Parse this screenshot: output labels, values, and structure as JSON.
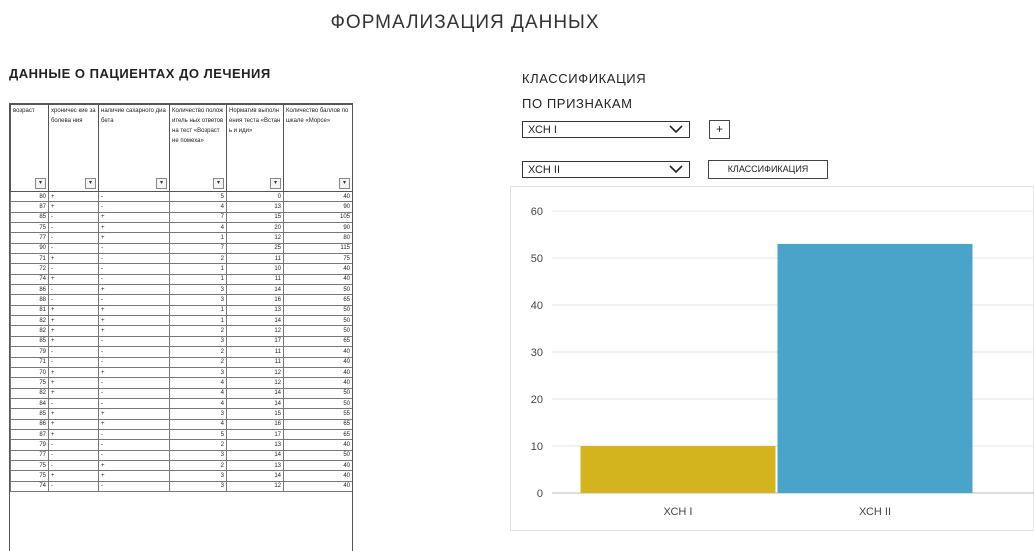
{
  "page": {
    "title": "ФОРМАЛИЗАЦИЯ ДАННЫХ"
  },
  "left": {
    "heading": "ДАННЫЕ О ПАЦИЕНТАХ ДО ЛЕЧЕНИЯ",
    "columns": [
      "возраст",
      "хроничес кие заболева ния",
      "наличие сахарного диабета",
      "Количество положитель ных ответов на тест «Возраст не помеха»",
      "Норматив выполнения теста «Встань и иди»",
      "Количество баллов по шкале «Морсе»"
    ],
    "rows": [
      [
        "80",
        "+",
        "-",
        "5",
        "0",
        "40"
      ],
      [
        "87",
        "+",
        "-",
        "4",
        "13",
        "90"
      ],
      [
        "85",
        "-",
        "+",
        "7",
        "15",
        "105"
      ],
      [
        "75",
        "-",
        "+",
        "4",
        "20",
        "90"
      ],
      [
        "77",
        "-",
        "+",
        "1",
        "12",
        "80"
      ],
      [
        "90",
        "-",
        "-",
        "7",
        "25",
        "115"
      ],
      [
        "71",
        "+",
        "-",
        "2",
        "11",
        "75"
      ],
      [
        "72",
        "-",
        "-",
        "1",
        "10",
        "40"
      ],
      [
        "74",
        "+",
        "-",
        "1",
        "11",
        "40"
      ],
      [
        "86",
        "-",
        "+",
        "3",
        "14",
        "50"
      ],
      [
        "88",
        "-",
        "-",
        "3",
        "16",
        "65"
      ],
      [
        "81",
        "+",
        "+",
        "1",
        "13",
        "50"
      ],
      [
        "82",
        "+",
        "+",
        "1",
        "14",
        "50"
      ],
      [
        "82",
        "+",
        "+",
        "2",
        "12",
        "50"
      ],
      [
        "85",
        "+",
        "-",
        "3",
        "17",
        "65"
      ],
      [
        "79",
        "-",
        "-",
        "2",
        "11",
        "40"
      ],
      [
        "71",
        "-",
        "-",
        "2",
        "11",
        "40"
      ],
      [
        "70",
        "+",
        "+",
        "3",
        "12",
        "40"
      ],
      [
        "75",
        "+",
        "-",
        "4",
        "12",
        "40"
      ],
      [
        "82",
        "+",
        "-",
        "4",
        "14",
        "50"
      ],
      [
        "84",
        "-",
        "-",
        "4",
        "14",
        "50"
      ],
      [
        "85",
        "+",
        "+",
        "3",
        "15",
        "55"
      ],
      [
        "86",
        "+",
        "+",
        "4",
        "16",
        "65"
      ],
      [
        "87",
        "+",
        "-",
        "5",
        "17",
        "65"
      ],
      [
        "79",
        "-",
        "-",
        "2",
        "13",
        "40"
      ],
      [
        "77",
        "-",
        "-",
        "3",
        "14",
        "50"
      ],
      [
        "75",
        "-",
        "+",
        "2",
        "13",
        "40"
      ],
      [
        "75",
        "+",
        "+",
        "3",
        "14",
        "40"
      ],
      [
        "74",
        "-",
        "-",
        "3",
        "12",
        "40"
      ]
    ]
  },
  "right": {
    "heading_line1": "КЛАССИФИКАЦИЯ",
    "heading_line2": "ПО ПРИЗНАКАМ",
    "select1": {
      "value": "ХСН I"
    },
    "select2": {
      "value": "ХСН II"
    },
    "add_label": "+",
    "classify_label": "КЛАССИФИКАЦИЯ"
  },
  "chart_data": {
    "type": "bar",
    "categories": [
      "ХСН I",
      "ХСН II"
    ],
    "values": [
      10,
      53
    ],
    "colors": [
      "#d4b41e",
      "#4aa3c8"
    ],
    "ylim": [
      0,
      60
    ],
    "yticks": [
      0,
      10,
      20,
      30,
      40,
      50,
      60
    ],
    "grid": true,
    "legend": "none"
  }
}
